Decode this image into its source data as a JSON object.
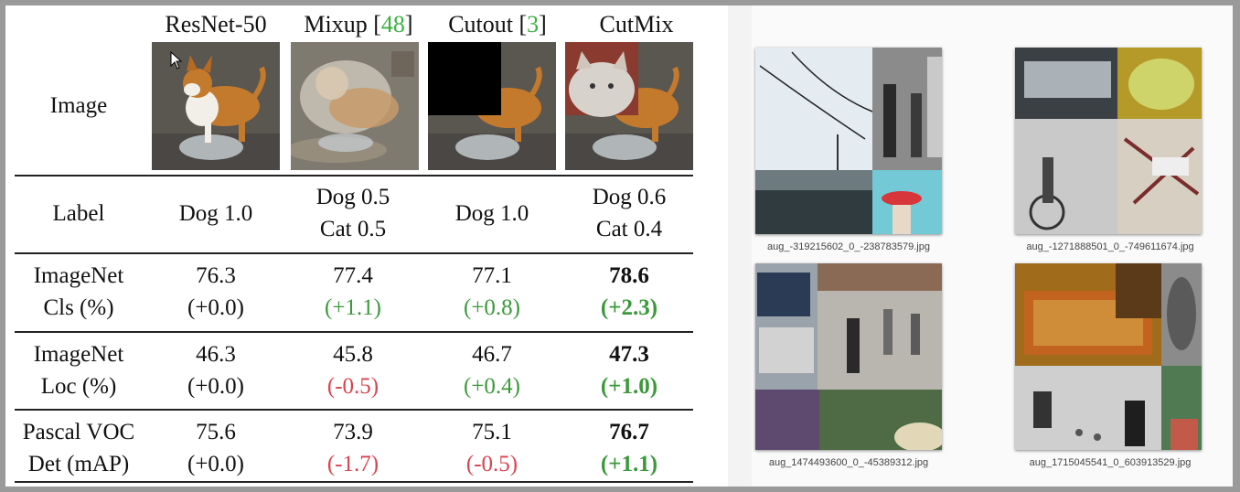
{
  "table": {
    "columns": [
      {
        "name": "ResNet-50",
        "cite": ""
      },
      {
        "name": "Mixup [",
        "cite": "48",
        "close": "]"
      },
      {
        "name": "Cutout [",
        "cite": "3",
        "close": "]"
      },
      {
        "name": "CutMix",
        "cite": ""
      }
    ],
    "image_label": "Image",
    "rows": [
      {
        "label1": "Label",
        "label2": "",
        "cells": [
          {
            "v1": "Dog 1.0",
            "v2": ""
          },
          {
            "v1": "Dog 0.5",
            "v2": "Cat 0.5"
          },
          {
            "v1": "Dog 1.0",
            "v2": ""
          },
          {
            "v1": "Dog 0.6",
            "v2": "Cat 0.4"
          }
        ]
      },
      {
        "label1": "ImageNet",
        "label2": "Cls (%)",
        "cells": [
          {
            "v1": "76.3",
            "v2": "(+0.0)"
          },
          {
            "v1": "77.4",
            "v2": "(+1.1)"
          },
          {
            "v1": "77.1",
            "v2": "(+0.8)"
          },
          {
            "v1": "78.6",
            "v2": "(+2.3)"
          }
        ]
      },
      {
        "label1": "ImageNet",
        "label2": "Loc (%)",
        "cells": [
          {
            "v1": "46.3",
            "v2": "(+0.0)"
          },
          {
            "v1": "45.8",
            "v2": "(-0.5)"
          },
          {
            "v1": "46.7",
            "v2": "(+0.4)"
          },
          {
            "v1": "47.3",
            "v2": "(+1.0)"
          }
        ]
      },
      {
        "label1": "Pascal VOC",
        "label2": "Det (mAP)",
        "cells": [
          {
            "v1": "75.6",
            "v2": "(+0.0)"
          },
          {
            "v1": "73.9",
            "v2": "(-1.7)"
          },
          {
            "v1": "75.1",
            "v2": "(-0.5)"
          },
          {
            "v1": "76.7",
            "v2": "(+1.1)"
          }
        ]
      }
    ]
  },
  "gallery": {
    "files": [
      "aug_-319215602_0_-238783579.jpg",
      "aug_-1271888501_0_-749611674.jpg",
      "aug_1474493600_0_-45389312.jpg",
      "aug_1715045541_0_603913529.jpg"
    ]
  }
}
